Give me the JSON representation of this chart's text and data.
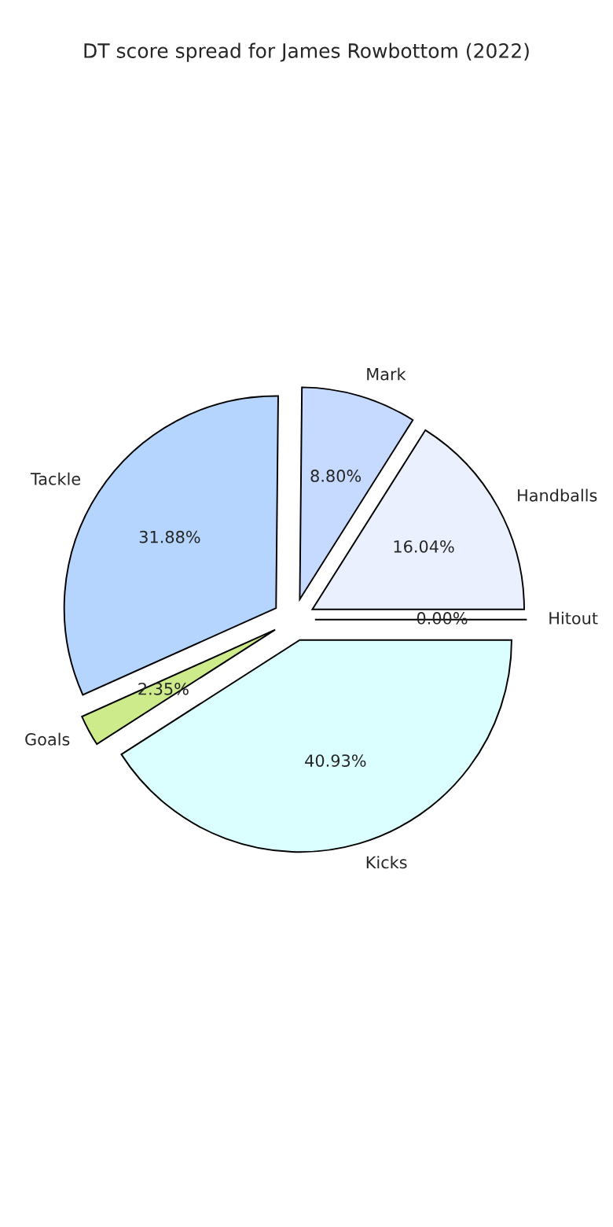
{
  "chart_data": {
    "type": "pie",
    "title": "DT score spread for James Rowbottom (2022)",
    "categories": [
      "Hitout",
      "Handballs",
      "Mark",
      "Tackle",
      "Goals",
      "Kicks"
    ],
    "values": [
      0.0,
      16.04,
      8.8,
      31.88,
      2.35,
      40.93
    ],
    "value_labels": [
      "0.00%",
      "16.04%",
      "8.80%",
      "31.88%",
      "2.35%",
      "40.93%"
    ],
    "colors": [
      "#d9d9d9",
      "#eaf0fe",
      "#c6d9fe",
      "#b6d5fe",
      "#cdeb8b",
      "#dbffff"
    ]
  }
}
